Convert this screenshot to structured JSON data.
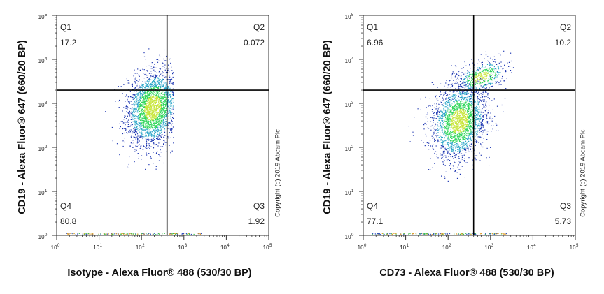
{
  "chart_data": [
    {
      "type": "scatter",
      "subtype": "flow-cytometry-density-dot-plot",
      "xlabel": "Isotype - Alexa Fluor® 488 (530/30 BP)",
      "ylabel": "CD19 - Alexa Fluor® 647 (660/20 BP)",
      "xscale": "log",
      "yscale": "log",
      "xlim": [
        1,
        100000
      ],
      "ylim": [
        1,
        100000
      ],
      "xticks": [
        "10",
        "10",
        "10",
        "10",
        "10",
        "10"
      ],
      "xtick_exponents": [
        "0",
        "1",
        "2",
        "3",
        "4",
        "5"
      ],
      "yticks": [
        "10",
        "10",
        "10",
        "10",
        "10",
        "10"
      ],
      "ytick_exponents": [
        "0",
        "1",
        "2",
        "3",
        "4",
        "5"
      ],
      "gate": {
        "x": 400,
        "y": 2000
      },
      "quadrants": [
        {
          "name": "Q1",
          "value": "17.2",
          "position": "top-left"
        },
        {
          "name": "Q2",
          "value": "0.072",
          "position": "top-right"
        },
        {
          "name": "Q3",
          "value": "1.92",
          "position": "bottom-right"
        },
        {
          "name": "Q4",
          "value": "80.8",
          "position": "bottom-left"
        }
      ],
      "populations": [
        {
          "center_x": 180,
          "center_y": 800,
          "spread_x_decades": 0.3,
          "spread_y_decades": 0.42,
          "count": 2600,
          "x_max": 560
        }
      ],
      "copyright": "Copyright (c) 2019 Abcam Plc",
      "colors": {
        "low": "#1a33b0",
        "mid": "#2ca6c8",
        "high": "#2fd65a",
        "peak": "#c8e63c",
        "gate": "#000000"
      }
    },
    {
      "type": "scatter",
      "subtype": "flow-cytometry-density-dot-plot",
      "xlabel": "CD73 - Alexa Fluor® 488 (530/30 BP)",
      "ylabel": "CD19 - Alexa Fluor® 647 (660/20 BP)",
      "xscale": "log",
      "yscale": "log",
      "xlim": [
        1,
        100000
      ],
      "ylim": [
        1,
        100000
      ],
      "xticks": [
        "10",
        "10",
        "10",
        "10",
        "10",
        "10"
      ],
      "xtick_exponents": [
        "0",
        "1",
        "2",
        "3",
        "4",
        "5"
      ],
      "yticks": [
        "10",
        "10",
        "10",
        "10",
        "10",
        "10"
      ],
      "ytick_exponents": [
        "0",
        "1",
        "2",
        "3",
        "4",
        "5"
      ],
      "gate": {
        "x": 400,
        "y": 2000
      },
      "quadrants": [
        {
          "name": "Q1",
          "value": "6.96",
          "position": "top-left"
        },
        {
          "name": "Q2",
          "value": "10.2",
          "position": "top-right"
        },
        {
          "name": "Q3",
          "value": "5.73",
          "position": "bottom-right"
        },
        {
          "name": "Q4",
          "value": "77.1",
          "position": "bottom-left"
        }
      ],
      "populations": [
        {
          "center_x": 180,
          "center_y": 400,
          "spread_x_decades": 0.32,
          "spread_y_decades": 0.42,
          "count": 2300,
          "x_max": 100000
        },
        {
          "center_x": 600,
          "center_y": 4000,
          "spread_x_decades": 0.3,
          "spread_y_decades": 0.17,
          "count": 500,
          "x_max": 100000
        }
      ],
      "copyright": "Copyright (c) 2019 Abcam Plc",
      "colors": {
        "low": "#1a33b0",
        "mid": "#2ca6c8",
        "high": "#2fd65a",
        "peak": "#c8e63c",
        "gate": "#000000"
      }
    }
  ]
}
